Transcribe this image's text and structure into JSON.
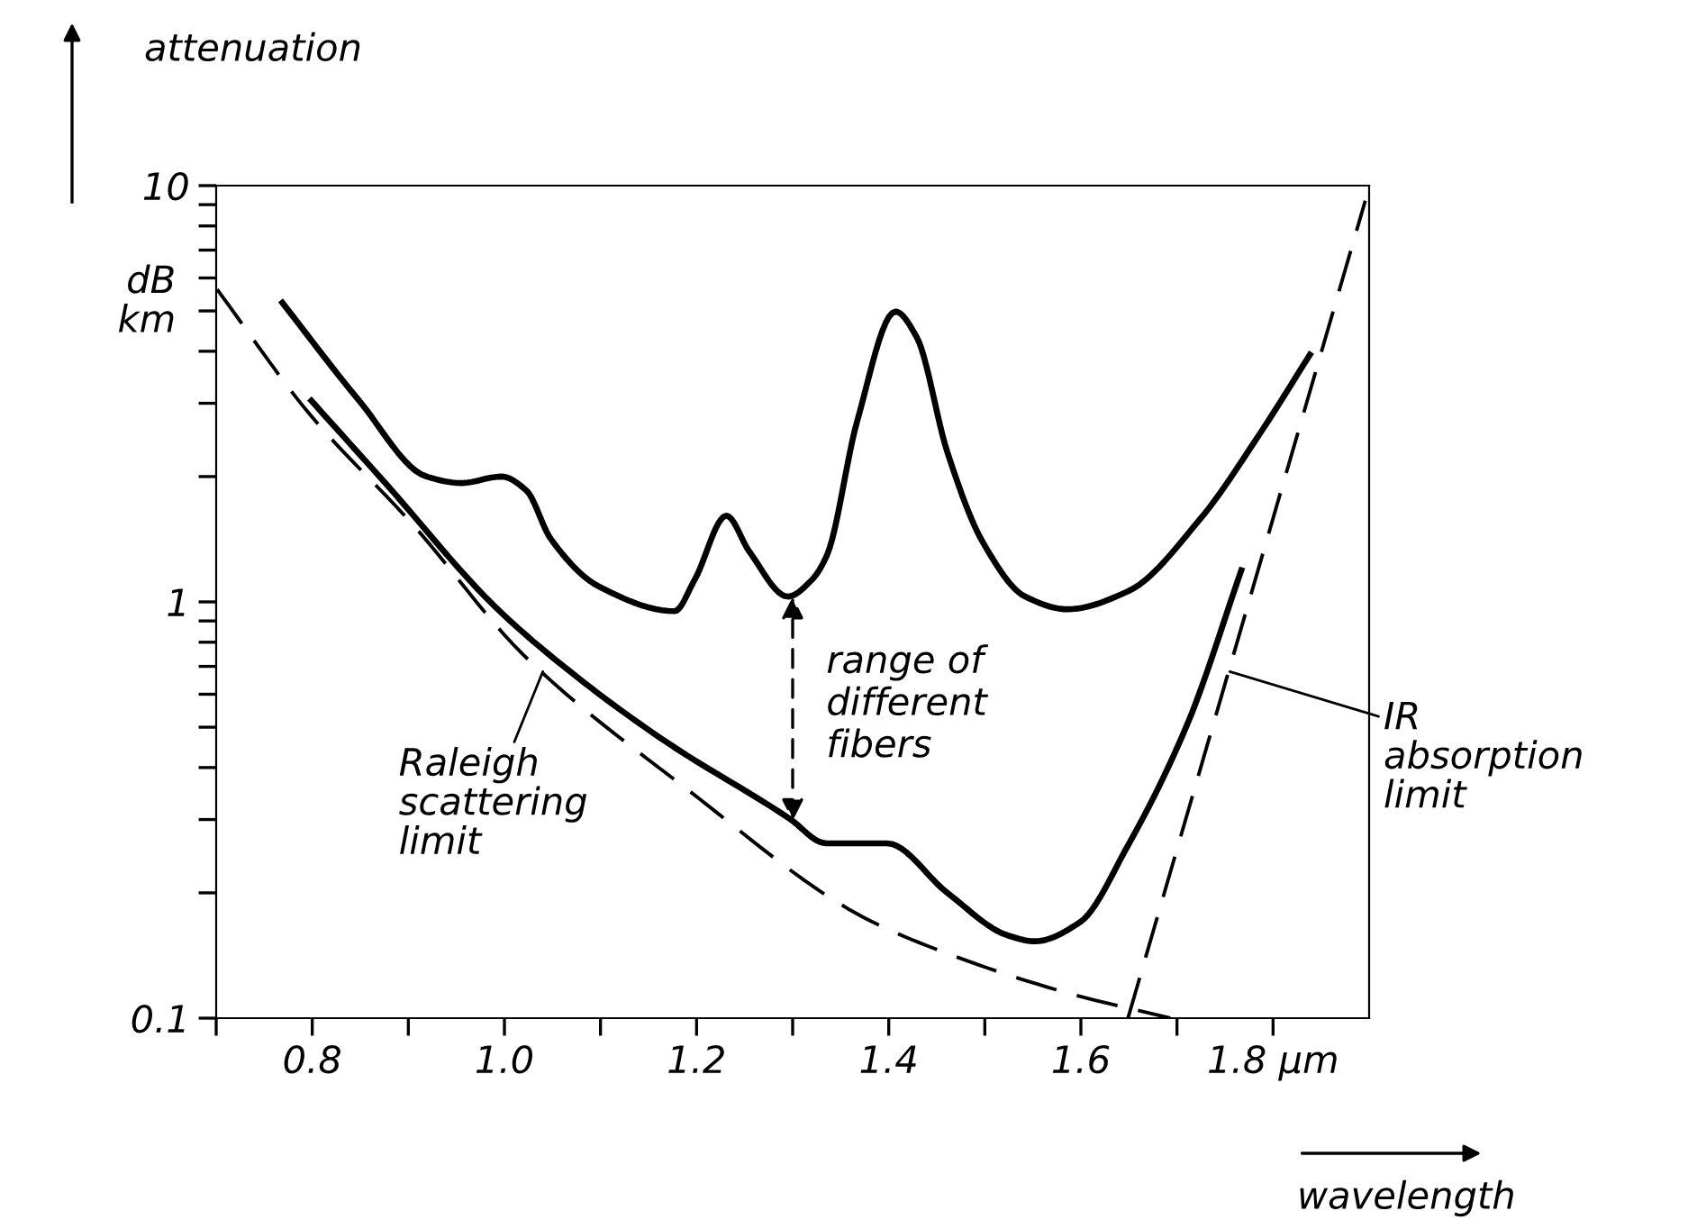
{
  "chart_data": {
    "type": "line",
    "xlabel": "wavelength",
    "ylabel": "attenuation",
    "log": "y",
    "xlim": [
      0.7,
      1.9
    ],
    "ylim": [
      0.1,
      10
    ],
    "xticks": [
      {
        "value": 0.7,
        "label": null
      },
      0.8,
      {
        "value": 0.9,
        "label": null
      },
      {
        "value": 1.0,
        "label": "1.0"
      },
      {
        "value": 1.1,
        "label": null
      },
      1.2,
      {
        "value": 1.3,
        "label": null
      },
      1.4,
      {
        "value": 1.5,
        "label": null
      },
      1.6,
      {
        "value": 1.7,
        "label": null
      },
      {
        "value": 1.8,
        "label": "1.8 µm"
      }
    ],
    "yticks": [
      0.1,
      {
        "value": 0.2,
        "label": null
      },
      {
        "value": 0.3,
        "label": null
      },
      {
        "value": 0.4,
        "label": null
      },
      {
        "value": 0.5,
        "label": null
      },
      {
        "value": 0.6,
        "label": null
      },
      {
        "value": 0.7,
        "label": null
      },
      {
        "value": 0.8,
        "label": null
      },
      {
        "value": 0.9,
        "label": null
      },
      1,
      {
        "value": 2,
        "label": null
      },
      {
        "value": 3,
        "label": null
      },
      {
        "value": 4,
        "label": null
      },
      {
        "value": 5,
        "label": null
      },
      {
        "value": 6,
        "label": null
      },
      {
        "value": 7,
        "label": null
      },
      {
        "value": 8,
        "label": null
      },
      {
        "value": 9,
        "label": null
      },
      10
    ],
    "grid": false,
    "marker": "none",
    "series": [
      {
        "color": "#000000",
        "line_style": "solid",
        "x": [
          0.767,
          0.848,
          0.919,
          0.955,
          0.997,
          1.023,
          1.048,
          1.098,
          1.177,
          1.198,
          1.231,
          1.255,
          1.295,
          1.32,
          1.336,
          1.367,
          1.407,
          1.429,
          1.461,
          1.498,
          1.542,
          1.586,
          1.649,
          1.724,
          1.786,
          1.84
        ],
        "values": [
          5.3,
          3.06,
          2.0,
          1.93,
          2.0,
          1.85,
          1.42,
          1.09,
          0.95,
          1.13,
          1.61,
          1.32,
          1.03,
          1.13,
          1.3,
          2.71,
          4.98,
          4.33,
          2.29,
          1.39,
          1.03,
          0.96,
          1.06,
          1.58,
          2.53,
          3.98
        ]
      },
      {
        "color": "#000000",
        "line_style": "solid",
        "x": [
          0.797,
          0.876,
          0.991,
          1.083,
          1.169,
          1.298,
          1.331,
          1.336,
          1.398,
          1.461,
          1.524,
          1.552,
          1.599,
          1.649,
          1.711,
          1.768
        ],
        "values": [
          3.08,
          1.93,
          0.97,
          0.64,
          0.46,
          0.3,
          0.264,
          0.263,
          0.263,
          0.2,
          0.158,
          0.153,
          0.17,
          0.26,
          0.51,
          1.21
        ]
      },
      {
        "color": "#000000",
        "line_style": "dashed",
        "x": [
          0.701,
          0.797,
          0.905,
          1.02,
          1.19,
          1.373,
          1.461,
          1.586,
          1.693
        ],
        "values": [
          5.63,
          2.83,
          1.53,
          0.745,
          0.355,
          0.175,
          0.143,
          0.115,
          0.1
        ]
      },
      {
        "color": "#000000",
        "line_style": "dashed",
        "x": [
          1.649,
          1.896
        ],
        "values": [
          0.1,
          9.2
        ]
      }
    ],
    "annotations": [
      "dB\nkm",
      {
        "text": "range of\ndifferent\nfibers",
        "x": 1.3,
        "y": 1.03
      },
      {
        "text": "Raleigh\nscattering\nlimit",
        "x": 1.04,
        "y": 0.68
      },
      {
        "text": "IR\nabsorption\nlimit",
        "x": 1.755,
        "y": 0.68
      }
    ]
  }
}
